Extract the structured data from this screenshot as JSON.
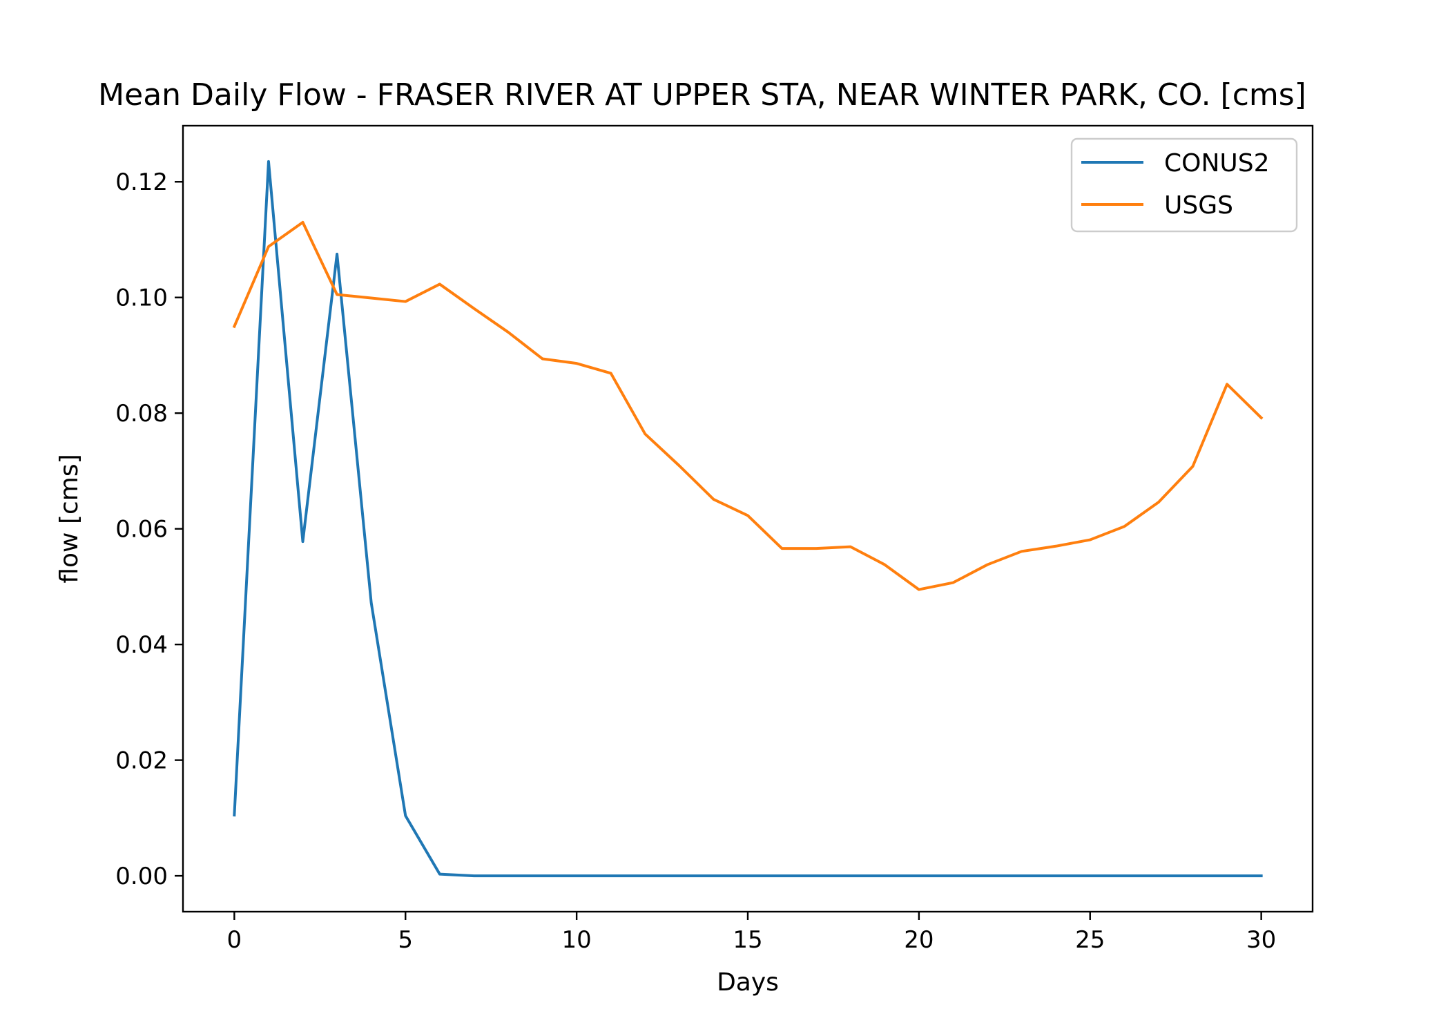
{
  "chart_data": {
    "type": "line",
    "title": "Mean Daily Flow - FRASER RIVER AT UPPER STA, NEAR WINTER PARK, CO. [cms]",
    "xlabel": "Days",
    "ylabel": "flow [cms]",
    "xlim": [
      -1.5,
      31.5
    ],
    "ylim": [
      -0.0062,
      0.1297
    ],
    "xticks": [
      0,
      5,
      10,
      15,
      20,
      25,
      30
    ],
    "xtick_labels": [
      "0",
      "5",
      "10",
      "15",
      "20",
      "25",
      "30"
    ],
    "yticks": [
      0.0,
      0.02,
      0.04,
      0.06,
      0.08,
      0.1,
      0.12
    ],
    "ytick_labels": [
      "0.00",
      "0.02",
      "0.04",
      "0.06",
      "0.08",
      "0.10",
      "0.12"
    ],
    "grid": false,
    "legend_position": "top-right",
    "x": [
      0,
      1,
      2,
      3,
      4,
      5,
      6,
      7,
      8,
      9,
      10,
      11,
      12,
      13,
      14,
      15,
      16,
      17,
      18,
      19,
      20,
      21,
      22,
      23,
      24,
      25,
      26,
      27,
      28,
      29,
      30
    ],
    "series": [
      {
        "name": "CONUS2",
        "color": "#1f77b4",
        "values": [
          0.0105,
          0.1235,
          0.0578,
          0.1075,
          0.0472,
          0.0104,
          0.0003,
          0.0,
          0.0,
          0.0,
          0.0,
          0.0,
          0.0,
          0.0,
          0.0,
          0.0,
          0.0,
          0.0,
          0.0,
          0.0,
          0.0,
          0.0,
          0.0,
          0.0,
          0.0,
          0.0,
          0.0,
          0.0,
          0.0,
          0.0,
          0.0
        ]
      },
      {
        "name": "USGS",
        "color": "#ff7f0e",
        "values": [
          0.095,
          0.1088,
          0.113,
          0.1005,
          0.0999,
          0.0993,
          0.1023,
          0.0981,
          0.094,
          0.0894,
          0.0886,
          0.0869,
          0.0764,
          0.0709,
          0.0651,
          0.0623,
          0.0566,
          0.0566,
          0.0569,
          0.0538,
          0.0495,
          0.0507,
          0.0538,
          0.0561,
          0.057,
          0.0581,
          0.0604,
          0.0646,
          0.0708,
          0.085,
          0.0792
        ]
      }
    ]
  }
}
